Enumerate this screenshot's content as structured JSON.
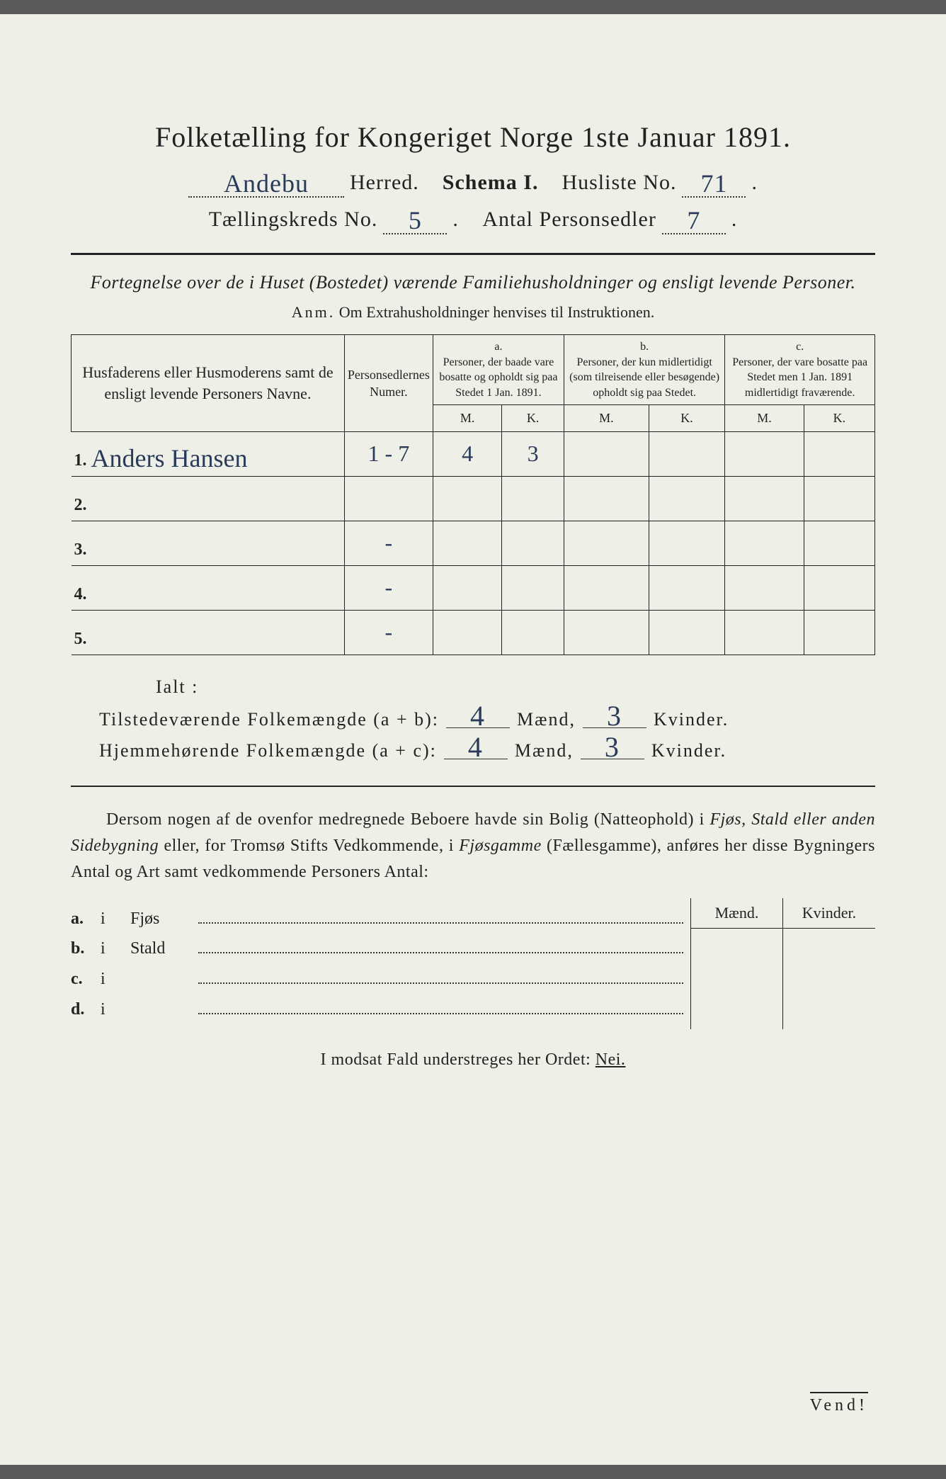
{
  "title": "Folketælling for Kongeriget Norge 1ste Januar 1891.",
  "header": {
    "herred_value": "Andebu",
    "herred_label": "Herred.",
    "schema_label": "Schema I.",
    "husliste_label": "Husliste No.",
    "husliste_value": "71",
    "kreds_label": "Tællingskreds No.",
    "kreds_value": "5",
    "antal_label": "Antal Personsedler",
    "antal_value": "7"
  },
  "subtitle": "Fortegnelse over de i Huset (Bostedet) værende Familiehusholdninger og ensligt levende Personer.",
  "anm_label": "Anm.",
  "anm_text": "Om Extrahusholdninger henvises til Instruktionen.",
  "table": {
    "col_name": "Husfaderens eller Husmoderens samt de ensligt levende Personers Navne.",
    "col_num": "Personsedlernes Numer.",
    "col_a_head": "a.",
    "col_a": "Personer, der baade vare bosatte og opholdt sig paa Stedet 1 Jan. 1891.",
    "col_b_head": "b.",
    "col_b": "Personer, der kun midlertidigt (som tilreisende eller besøgende) opholdt sig paa Stedet.",
    "col_c_head": "c.",
    "col_c": "Personer, der vare bosatte paa Stedet men 1 Jan. 1891 midlertidigt fraværende.",
    "M": "M.",
    "K": "K.",
    "rows": [
      {
        "n": "1.",
        "name": "Anders Hansen",
        "num": "1 - 7",
        "aM": "4",
        "aK": "3",
        "bM": "",
        "bK": "",
        "cM": "",
        "cK": ""
      },
      {
        "n": "2.",
        "name": "",
        "num": "",
        "aM": "",
        "aK": "",
        "bM": "",
        "bK": "",
        "cM": "",
        "cK": ""
      },
      {
        "n": "3.",
        "name": "",
        "num": "-",
        "aM": "",
        "aK": "",
        "bM": "",
        "bK": "",
        "cM": "",
        "cK": ""
      },
      {
        "n": "4.",
        "name": "",
        "num": "-",
        "aM": "",
        "aK": "",
        "bM": "",
        "bK": "",
        "cM": "",
        "cK": ""
      },
      {
        "n": "5.",
        "name": "",
        "num": "-",
        "aM": "",
        "aK": "",
        "bM": "",
        "bK": "",
        "cM": "",
        "cK": ""
      }
    ]
  },
  "ialt": "Ialt :",
  "sum1_label": "Tilstedeværende Folkemængde (a + b):",
  "sum2_label": "Hjemmehørende Folkemængde (a + c):",
  "maend": "Mænd,",
  "kvinder": "Kvinder.",
  "sum1_m": "4",
  "sum1_k": "3",
  "sum2_m": "4",
  "sum2_k": "3",
  "para": "Dersom nogen af de ovenfor medregnede Beboere havde sin Bolig (Natteophold) i Fjøs, Stald eller anden Sidebygning eller, for Tromsø Stifts Vedkommende, i Fjøsgamme (Fællesgamme), anføres her disse Bygningers Antal og Art samt vedkommende Personers Antal:",
  "bottom": {
    "head_m": "Mænd.",
    "head_k": "Kvinder.",
    "rows": [
      {
        "k": "a.",
        "i": "i",
        "label": "Fjøs"
      },
      {
        "k": "b.",
        "i": "i",
        "label": "Stald"
      },
      {
        "k": "c.",
        "i": "i",
        "label": ""
      },
      {
        "k": "d.",
        "i": "i",
        "label": ""
      }
    ]
  },
  "modsat": "I modsat Fald understreges her Ordet:",
  "nei": "Nei.",
  "vend": "Vend!"
}
